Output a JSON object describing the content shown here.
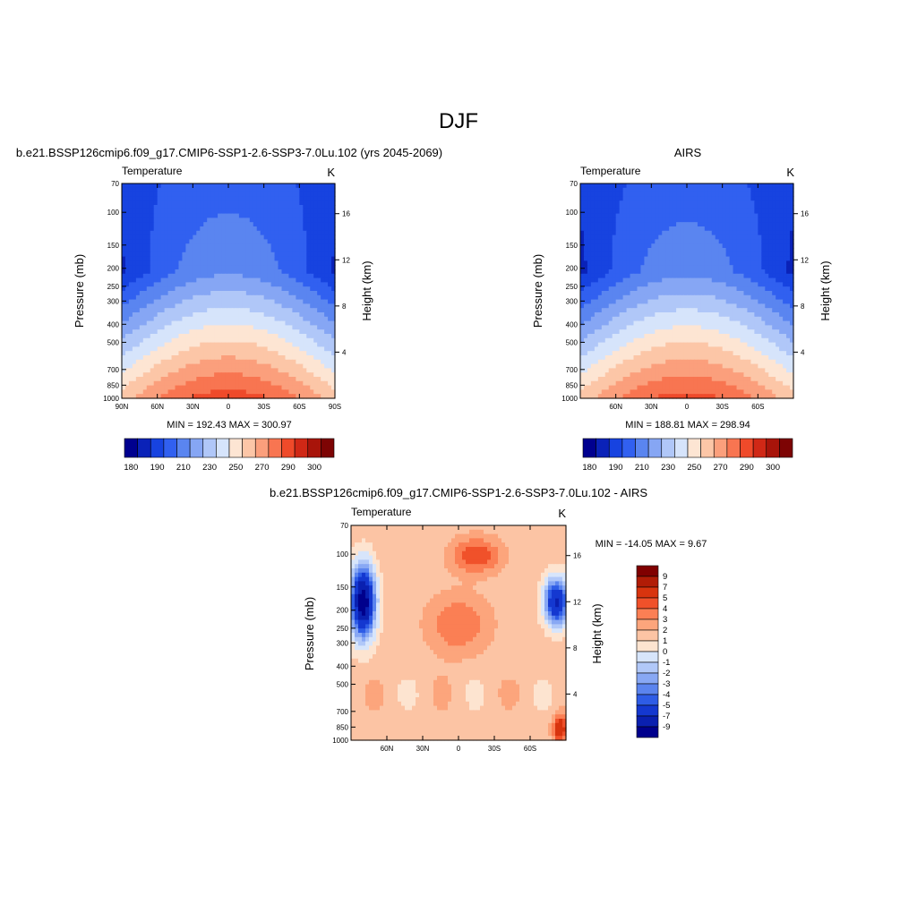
{
  "page": {
    "title": "DJF"
  },
  "chart_data": [
    {
      "type": "heatmap",
      "title": "b.e21.BSSP126cmip6.f09_g17.CMIP6-SSP1-2.6-SSP3-7.0Lu.102 (yrs 2045-2069)",
      "left_label": "Temperature",
      "right_label": "K",
      "xlabel": "",
      "ylabel": "Pressure (mb)",
      "ylabel_right": "Height (km)",
      "x_ticks": [
        "90N",
        "60N",
        "30N",
        "0",
        "30S",
        "60S",
        "90S"
      ],
      "y_ticks": [
        "70",
        "100",
        "150",
        "200",
        "250",
        "300",
        "400",
        "500",
        "700",
        "850",
        "1000"
      ],
      "y_right_ticks": [
        "4",
        "8",
        "12",
        "16"
      ],
      "min_max": "MIN = 192.43   MAX = 300.97",
      "min": 192.43,
      "max": 300.97,
      "colorbar_labels": [
        "180",
        "190",
        "210",
        "230",
        "250",
        "270",
        "290",
        "300"
      ]
    },
    {
      "type": "heatmap",
      "title": "AIRS",
      "left_label": "Temperature",
      "right_label": "K",
      "xlabel": "",
      "ylabel": "Pressure (mb)",
      "ylabel_right": "Height (km)",
      "x_ticks": [
        "60N",
        "30N",
        "0",
        "30S",
        "60S"
      ],
      "y_ticks": [
        "70",
        "100",
        "150",
        "200",
        "250",
        "300",
        "400",
        "500",
        "700",
        "850",
        "1000"
      ],
      "y_right_ticks": [
        "4",
        "8",
        "12",
        "16"
      ],
      "min_max": "MIN = 188.81   MAX = 298.94",
      "min": 188.81,
      "max": 298.94,
      "colorbar_labels": [
        "180",
        "190",
        "210",
        "230",
        "250",
        "270",
        "290",
        "300"
      ]
    },
    {
      "type": "heatmap",
      "title": "b.e21.BSSP126cmip6.f09_g17.CMIP6-SSP1-2.6-SSP3-7.0Lu.102 - AIRS",
      "left_label": "Temperature",
      "right_label": "K",
      "xlabel": "",
      "ylabel": "Pressure (mb)",
      "ylabel_right": "Height (km)",
      "x_ticks": [
        "60N",
        "30N",
        "0",
        "30S",
        "60S"
      ],
      "y_ticks": [
        "70",
        "100",
        "150",
        "200",
        "250",
        "300",
        "400",
        "500",
        "700",
        "850",
        "1000"
      ],
      "y_right_ticks": [
        "4",
        "8",
        "12",
        "16"
      ],
      "min_max": "MIN = -14.05   MAX =   9.67",
      "min": -14.05,
      "max": 9.67,
      "colorbar_labels": [
        "9",
        "7",
        "5",
        "4",
        "3",
        "2",
        "1",
        "0",
        "-1",
        "-2",
        "-3",
        "-4",
        "-5",
        "-7",
        "-9"
      ]
    }
  ],
  "colors": {
    "abs_scale": [
      "#00008f",
      "#0a22b8",
      "#1743e0",
      "#3160f0",
      "#5a85f0",
      "#86a6f4",
      "#b0c7f8",
      "#d6e4fb",
      "#fde5d3",
      "#fcc6a7",
      "#fb9f7c",
      "#f87551",
      "#ef4a2a",
      "#d02816",
      "#a8140a",
      "#7d0404"
    ],
    "diff_scale": [
      "#800000",
      "#b11c06",
      "#d8340e",
      "#f0512a",
      "#fb7f54",
      "#fca57c",
      "#fcc4a4",
      "#fde4d0",
      "#d7e5fb",
      "#b1c8f8",
      "#88a8f4",
      "#5b84ee",
      "#2e5ce6",
      "#1438d0",
      "#0a20b0",
      "#00008c"
    ]
  }
}
